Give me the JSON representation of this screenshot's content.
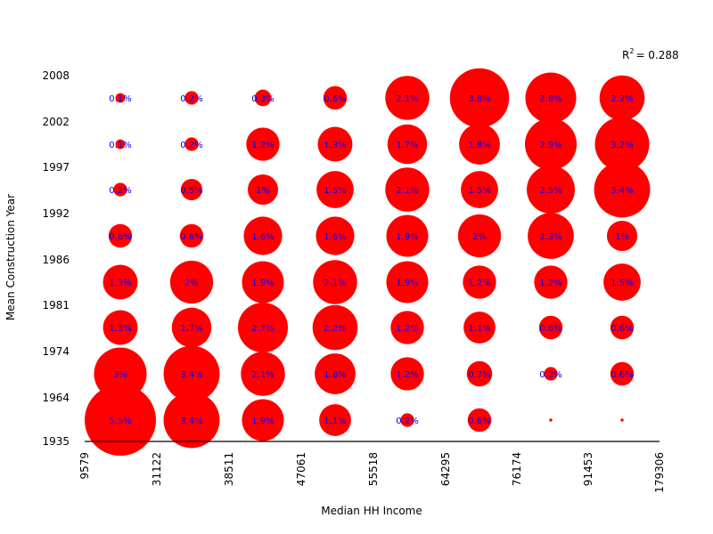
{
  "chart_data": {
    "type": "scatter",
    "subtype": "bubble-grid",
    "title": "",
    "xlabel": "Median HH Income",
    "ylabel": "Mean Construction Year",
    "x_ticks": [
      "9579",
      "31122",
      "38511",
      "47061",
      "55518",
      "64295",
      "76174",
      "91453",
      "179306"
    ],
    "y_ticks": [
      "1935",
      "1964",
      "1974",
      "1981",
      "1986",
      "1992",
      "1997",
      "2002",
      "2008"
    ],
    "annotation": {
      "r_label": "R",
      "r_exponent": "2",
      "r_value": "= 0.288"
    },
    "colors": {
      "bubble": "#ff0000",
      "label": "#0000ff",
      "axis": "#000000"
    },
    "cells": [
      {
        "col": 0,
        "row": 7,
        "value": 0.1,
        "label": "0.1%"
      },
      {
        "col": 1,
        "row": 7,
        "value": 0.2,
        "label": "0.2%"
      },
      {
        "col": 2,
        "row": 7,
        "value": 0.3,
        "label": "0.3%"
      },
      {
        "col": 3,
        "row": 7,
        "value": 0.6,
        "label": "0.6%"
      },
      {
        "col": 4,
        "row": 7,
        "value": 2.1,
        "label": "2.1%"
      },
      {
        "col": 5,
        "row": 7,
        "value": 3.8,
        "label": "3.8%"
      },
      {
        "col": 6,
        "row": 7,
        "value": 2.8,
        "label": "2.8%"
      },
      {
        "col": 7,
        "row": 7,
        "value": 2.2,
        "label": "2.2%"
      },
      {
        "col": 0,
        "row": 6,
        "value": 0.1,
        "label": "0.1%"
      },
      {
        "col": 1,
        "row": 6,
        "value": 0.2,
        "label": "0.2%"
      },
      {
        "col": 2,
        "row": 6,
        "value": 1.2,
        "label": "1.2%"
      },
      {
        "col": 3,
        "row": 6,
        "value": 1.3,
        "label": "1.3%"
      },
      {
        "col": 4,
        "row": 6,
        "value": 1.7,
        "label": "1.7%"
      },
      {
        "col": 5,
        "row": 6,
        "value": 1.8,
        "label": "1.8%"
      },
      {
        "col": 6,
        "row": 6,
        "value": 2.9,
        "label": "2.9%"
      },
      {
        "col": 7,
        "row": 6,
        "value": 3.2,
        "label": "3.2%"
      },
      {
        "col": 0,
        "row": 5,
        "value": 0.2,
        "label": "0.2%"
      },
      {
        "col": 1,
        "row": 5,
        "value": 0.5,
        "label": "0.5%"
      },
      {
        "col": 2,
        "row": 5,
        "value": 1.0,
        "label": "1%"
      },
      {
        "col": 3,
        "row": 5,
        "value": 1.5,
        "label": "1.5%"
      },
      {
        "col": 4,
        "row": 5,
        "value": 2.1,
        "label": "2.1%"
      },
      {
        "col": 5,
        "row": 5,
        "value": 1.5,
        "label": "1.5%"
      },
      {
        "col": 6,
        "row": 5,
        "value": 2.5,
        "label": "2.5%"
      },
      {
        "col": 7,
        "row": 5,
        "value": 3.4,
        "label": "3.4%"
      },
      {
        "col": 0,
        "row": 4,
        "value": 0.6,
        "label": "0.6%"
      },
      {
        "col": 1,
        "row": 4,
        "value": 0.6,
        "label": "0.6%"
      },
      {
        "col": 2,
        "row": 4,
        "value": 1.6,
        "label": "1.6%"
      },
      {
        "col": 3,
        "row": 4,
        "value": 1.6,
        "label": "1.6%"
      },
      {
        "col": 4,
        "row": 4,
        "value": 1.9,
        "label": "1.9%"
      },
      {
        "col": 5,
        "row": 4,
        "value": 2.0,
        "label": "2%"
      },
      {
        "col": 6,
        "row": 4,
        "value": 2.3,
        "label": "2.3%"
      },
      {
        "col": 7,
        "row": 4,
        "value": 1.0,
        "label": "1%"
      },
      {
        "col": 0,
        "row": 3,
        "value": 1.3,
        "label": "1.3%"
      },
      {
        "col": 1,
        "row": 3,
        "value": 2.0,
        "label": "2%"
      },
      {
        "col": 2,
        "row": 3,
        "value": 1.9,
        "label": "1.9%"
      },
      {
        "col": 3,
        "row": 3,
        "value": 2.1,
        "label": "2.1%"
      },
      {
        "col": 4,
        "row": 3,
        "value": 1.9,
        "label": "1.9%"
      },
      {
        "col": 5,
        "row": 3,
        "value": 1.2,
        "label": "1.2%"
      },
      {
        "col": 6,
        "row": 3,
        "value": 1.2,
        "label": "1.2%"
      },
      {
        "col": 7,
        "row": 3,
        "value": 1.5,
        "label": "1.5%"
      },
      {
        "col": 0,
        "row": 2,
        "value": 1.3,
        "label": "1.3%"
      },
      {
        "col": 1,
        "row": 2,
        "value": 1.7,
        "label": "1.7%"
      },
      {
        "col": 2,
        "row": 2,
        "value": 2.7,
        "label": "2.7%"
      },
      {
        "col": 3,
        "row": 2,
        "value": 2.2,
        "label": "2.2%"
      },
      {
        "col": 4,
        "row": 2,
        "value": 1.2,
        "label": "1.2%"
      },
      {
        "col": 5,
        "row": 2,
        "value": 1.1,
        "label": "1.1%"
      },
      {
        "col": 6,
        "row": 2,
        "value": 0.6,
        "label": "0.6%"
      },
      {
        "col": 7,
        "row": 2,
        "value": 0.6,
        "label": "0.6%"
      },
      {
        "col": 0,
        "row": 1,
        "value": 3.0,
        "label": "3%"
      },
      {
        "col": 1,
        "row": 1,
        "value": 3.4,
        "label": "3.4%"
      },
      {
        "col": 2,
        "row": 1,
        "value": 2.1,
        "label": "2.1%"
      },
      {
        "col": 3,
        "row": 1,
        "value": 1.8,
        "label": "1.8%"
      },
      {
        "col": 4,
        "row": 1,
        "value": 1.2,
        "label": "1.2%"
      },
      {
        "col": 5,
        "row": 1,
        "value": 0.7,
        "label": "0.7%"
      },
      {
        "col": 6,
        "row": 1,
        "value": 0.2,
        "label": "0.2%"
      },
      {
        "col": 7,
        "row": 1,
        "value": 0.6,
        "label": "0.6%"
      },
      {
        "col": 0,
        "row": 0,
        "value": 5.5,
        "label": "5.5%"
      },
      {
        "col": 1,
        "row": 0,
        "value": 3.4,
        "label": "3.4%"
      },
      {
        "col": 2,
        "row": 0,
        "value": 1.9,
        "label": "1.9%"
      },
      {
        "col": 3,
        "row": 0,
        "value": 1.1,
        "label": "1.1%"
      },
      {
        "col": 4,
        "row": 0,
        "value": 0.2,
        "label": "0.2%"
      },
      {
        "col": 5,
        "row": 0,
        "value": 0.6,
        "label": "0.6%"
      },
      {
        "col": 6,
        "row": 0,
        "value": 0.01,
        "label": ""
      },
      {
        "col": 7,
        "row": 0,
        "value": 0.01,
        "label": ""
      }
    ]
  }
}
